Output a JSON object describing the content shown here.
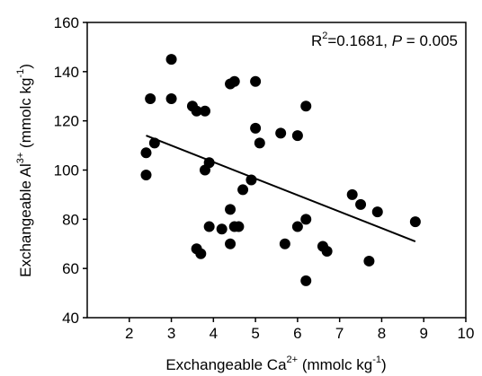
{
  "chart_data": {
    "type": "scatter",
    "x_label": [
      "Exchangeable Ca",
      "2+",
      " (mmolc kg",
      "-1",
      ")"
    ],
    "y_label": [
      "Exchangeable Al",
      "3+",
      " (mmolc kg",
      "-1",
      ")"
    ],
    "annotation": [
      "R",
      "2",
      "=0.1681, ",
      "P",
      " = 0.005"
    ],
    "x": [
      2.4,
      2.4,
      2.5,
      2.6,
      3.0,
      3.0,
      3.5,
      3.6,
      3.8,
      3.6,
      3.7,
      3.8,
      3.9,
      3.9,
      4.2,
      4.4,
      4.5,
      4.4,
      4.4,
      4.5,
      4.6,
      4.7,
      4.9,
      5.0,
      5.0,
      5.1,
      5.6,
      5.7,
      6.0,
      6.0,
      6.2,
      6.2,
      6.2,
      6.6,
      6.7,
      7.3,
      7.5,
      7.7,
      7.9,
      8.8
    ],
    "values": [
      107,
      98,
      129,
      111,
      145,
      129,
      126,
      124,
      124,
      68,
      66,
      100,
      103,
      77,
      76,
      135,
      136,
      84,
      70,
      77,
      77,
      92,
      96,
      136,
      117,
      111,
      115,
      70,
      114,
      77,
      126,
      80,
      55,
      69,
      67,
      90,
      86,
      63,
      83,
      79
    ],
    "color": "#000000",
    "trend": {
      "x": [
        2.4,
        8.8
      ],
      "values": [
        114,
        71
      ]
    },
    "xlim": [
      1,
      10
    ],
    "xticks": [
      2,
      3,
      4,
      5,
      6,
      7,
      8,
      9,
      10
    ],
    "ylim": [
      40,
      160
    ],
    "yticks": [
      40,
      60,
      80,
      100,
      120,
      140,
      160
    ]
  }
}
